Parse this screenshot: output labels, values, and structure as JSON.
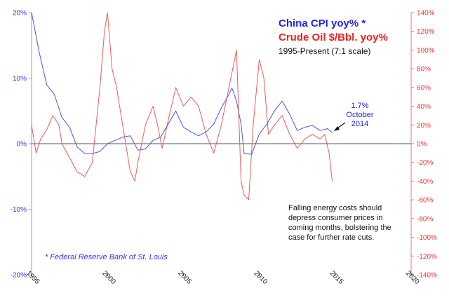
{
  "chart_data": {
    "type": "line",
    "title": "China CPI yoy% *",
    "title2": "Crude Oil $/Bbl. yoy%",
    "subtitle": "1995-Present (7:1 scale)",
    "source": "* Federal Reserve Bank of St. Louis",
    "annotation": {
      "line1": "1.7%",
      "line2": "October",
      "line3": "2014"
    },
    "note": [
      "Falling energy costs should",
      "depress consumer prices in",
      "coming months, bolstering the",
      "case for further rate cuts."
    ],
    "x_ticks": [
      "1995",
      "2000",
      "2005",
      "2010",
      "2015",
      "2020"
    ],
    "xlim": [
      1995,
      2020
    ],
    "y_left": {
      "ticks": [
        "20%",
        "10%",
        "0%",
        "-10%",
        "-20%"
      ],
      "ylim": [
        -20,
        20
      ],
      "color": "#3333ee"
    },
    "y_right": {
      "ticks": [
        "140%",
        "120%",
        "100%",
        "80%",
        "60%",
        "40%",
        "20%",
        "0%",
        "-20%",
        "-40%",
        "-60%",
        "-80%",
        "-100%",
        "-120%",
        "-140%"
      ],
      "ylim": [
        -140,
        140
      ],
      "color": "#ee3333"
    },
    "grid": false,
    "series": [
      {
        "name": "China CPI yoy% *",
        "axis": "left",
        "color": "#5050ee",
        "x": [
          1995.0,
          1995.5,
          1996.0,
          1996.5,
          1997.0,
          1997.5,
          1998.0,
          1998.5,
          1999.0,
          1999.5,
          2000.0,
          2000.5,
          2001.0,
          2001.5,
          2002.0,
          2002.5,
          2003.0,
          2003.5,
          2004.0,
          2004.5,
          2005.0,
          2005.5,
          2006.0,
          2006.5,
          2007.0,
          2007.5,
          2008.0,
          2008.2,
          2008.5,
          2008.8,
          2009.0,
          2009.5,
          2010.0,
          2010.5,
          2011.0,
          2011.5,
          2012.0,
          2012.5,
          2013.0,
          2013.5,
          2014.0,
          2014.5,
          2014.8
        ],
        "values": [
          20.0,
          14.0,
          9.0,
          7.5,
          4.0,
          2.5,
          -0.5,
          -1.5,
          -1.5,
          -1.2,
          0.0,
          0.5,
          1.0,
          1.2,
          -1.0,
          -0.8,
          0.5,
          1.0,
          3.0,
          5.0,
          2.5,
          1.8,
          1.2,
          1.8,
          3.0,
          5.5,
          7.5,
          8.5,
          6.5,
          3.0,
          -1.5,
          -1.6,
          1.5,
          3.0,
          5.0,
          6.5,
          4.5,
          2.0,
          2.5,
          2.8,
          2.0,
          2.3,
          1.7
        ]
      },
      {
        "name": "Crude Oil $/Bbl. yoy%",
        "axis": "right",
        "color": "#ee5a5a",
        "x": [
          1995.0,
          1995.3,
          1995.6,
          1996.0,
          1996.4,
          1996.8,
          1997.0,
          1997.5,
          1998.0,
          1998.5,
          1999.0,
          1999.5,
          1999.8,
          2000.0,
          2000.3,
          2000.6,
          2001.0,
          2001.5,
          2001.8,
          2002.0,
          2002.5,
          2003.0,
          2003.3,
          2003.6,
          2004.0,
          2004.5,
          2005.0,
          2005.5,
          2006.0,
          2006.5,
          2007.0,
          2007.5,
          2008.0,
          2008.5,
          2008.8,
          2009.0,
          2009.3,
          2009.6,
          2010.0,
          2010.3,
          2010.6,
          2011.0,
          2011.5,
          2012.0,
          2012.5,
          2013.0,
          2013.5,
          2014.0,
          2014.3,
          2014.6,
          2014.8
        ],
        "values": [
          20,
          -10,
          5,
          15,
          30,
          20,
          0,
          -15,
          -30,
          -35,
          -20,
          60,
          120,
          140,
          80,
          60,
          20,
          -30,
          -40,
          -20,
          20,
          40,
          20,
          -5,
          25,
          60,
          40,
          50,
          40,
          10,
          -10,
          20,
          60,
          100,
          -40,
          -55,
          -60,
          20,
          90,
          70,
          10,
          20,
          30,
          10,
          -5,
          5,
          10,
          5,
          10,
          -10,
          -40
        ]
      }
    ]
  }
}
